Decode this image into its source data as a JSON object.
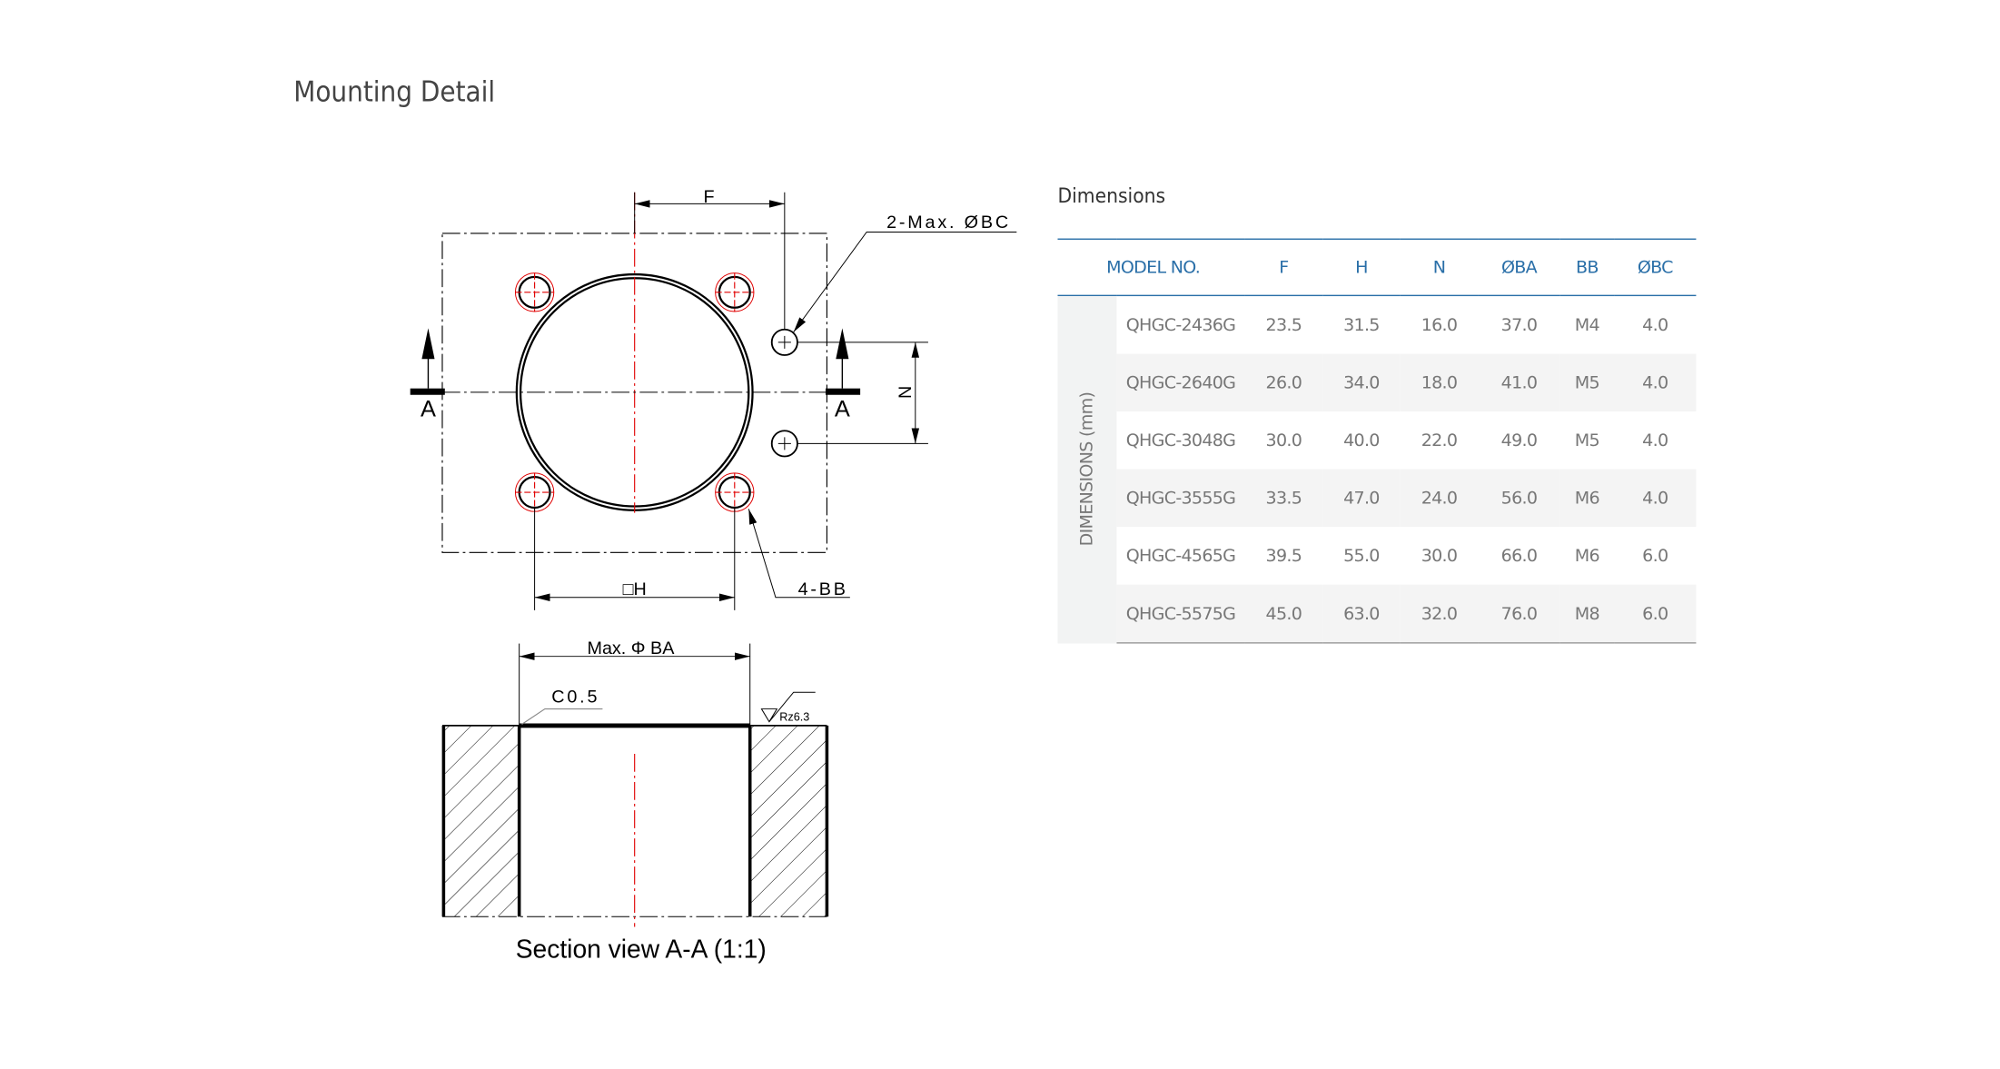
{
  "page_title": "Mounting Detail",
  "drawing": {
    "labels": {
      "f": "F",
      "bc": "2-Max. ØBC",
      "n": "N",
      "h": "□H",
      "bb": "4-BB",
      "section_left": "A",
      "section_right": "A",
      "ba": "Max. Φ BA",
      "chamfer": "C0.5",
      "roughness": "Rz6.3",
      "caption": "Section view A-A  (1:1)"
    },
    "colors": {
      "line": "#000000",
      "centerline": "#e00000"
    }
  },
  "table": {
    "title": "Dimensions",
    "side_label": "DIMENSIONS (mm)",
    "headers": [
      "MODEL NO.",
      "F",
      "H",
      "N",
      "ØBA",
      "BB",
      "ØBC"
    ],
    "rows": [
      [
        "QHGC-2436G",
        "23.5",
        "31.5",
        "16.0",
        "37.0",
        "M4",
        "4.0"
      ],
      [
        "QHGC-2640G",
        "26.0",
        "34.0",
        "18.0",
        "41.0",
        "M5",
        "4.0"
      ],
      [
        "QHGC-3048G",
        "30.0",
        "40.0",
        "22.0",
        "49.0",
        "M5",
        "4.0"
      ],
      [
        "QHGC-3555G",
        "33.5",
        "47.0",
        "24.0",
        "56.0",
        "M6",
        "4.0"
      ],
      [
        "QHGC-4565G",
        "39.5",
        "55.0",
        "30.0",
        "66.0",
        "M6",
        "6.0"
      ],
      [
        "QHGC-5575G",
        "45.0",
        "63.0",
        "32.0",
        "76.0",
        "M8",
        "6.0"
      ]
    ],
    "colors": {
      "accent": "#2a6fa8",
      "stripe": "#f4f4f4"
    }
  }
}
